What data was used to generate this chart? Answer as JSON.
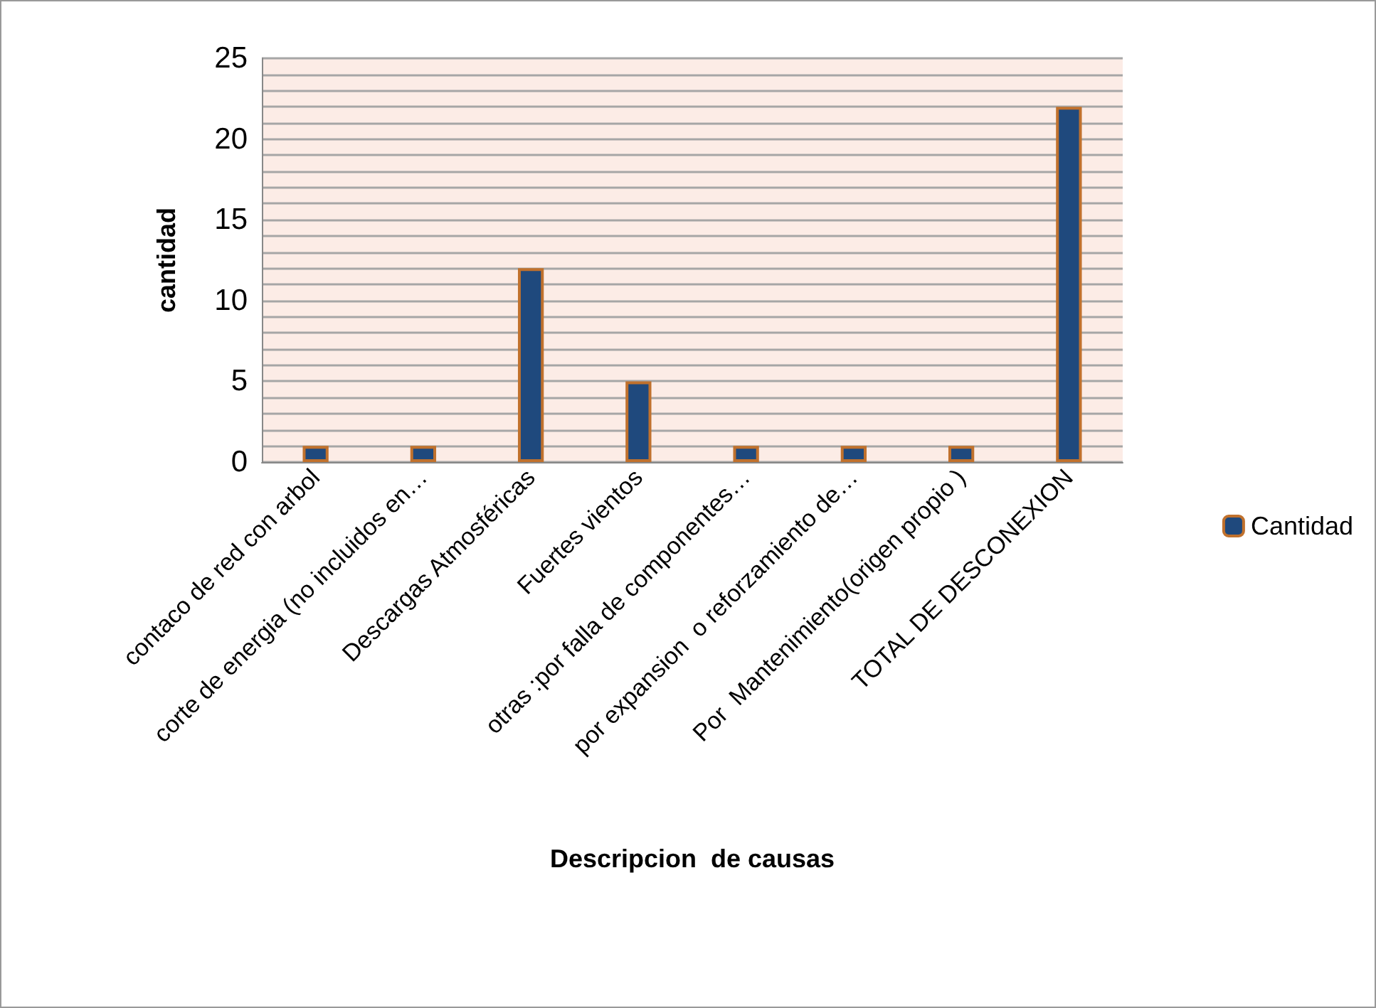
{
  "chart_data": {
    "type": "bar",
    "xlabel": "Descripcion  de causas",
    "ylabel": "cantidad",
    "categories": [
      "contaco de red con arbol",
      "corte de energia (no incluidos en…",
      "Descargas Atmosféricas",
      "Fuertes vientos",
      "otras :por falla de componentes…",
      "por expansion  o reforzamiento de…",
      "Por  Mantenimiento(origen propio )",
      "TOTAL DE DESCONEXION"
    ],
    "series": [
      {
        "name": "Cantidad",
        "color": "#1f497d",
        "values": [
          1,
          1,
          12,
          5,
          1,
          1,
          1,
          22
        ]
      }
    ],
    "ylim": [
      0,
      25
    ],
    "yticks": [
      0,
      {
        "value": 1,
        "label": null
      },
      {
        "value": 2,
        "label": null
      },
      {
        "value": 3,
        "label": null
      },
      {
        "value": 4,
        "label": null
      },
      5,
      {
        "value": 6,
        "label": null
      },
      {
        "value": 7,
        "label": null
      },
      {
        "value": 8,
        "label": null
      },
      {
        "value": 9,
        "label": null
      },
      10,
      {
        "value": 11,
        "label": null
      },
      {
        "value": 12,
        "label": null
      },
      {
        "value": 13,
        "label": null
      },
      {
        "value": 14,
        "label": null
      },
      15,
      {
        "value": 16,
        "label": null
      },
      {
        "value": 17,
        "label": null
      },
      {
        "value": 18,
        "label": null
      },
      {
        "value": 19,
        "label": null
      },
      20,
      {
        "value": 21,
        "label": null
      },
      {
        "value": 22,
        "label": null
      },
      {
        "value": 23,
        "label": null
      },
      {
        "value": 24,
        "label": null
      },
      25
    ],
    "grid": "y",
    "legend": "right"
  }
}
